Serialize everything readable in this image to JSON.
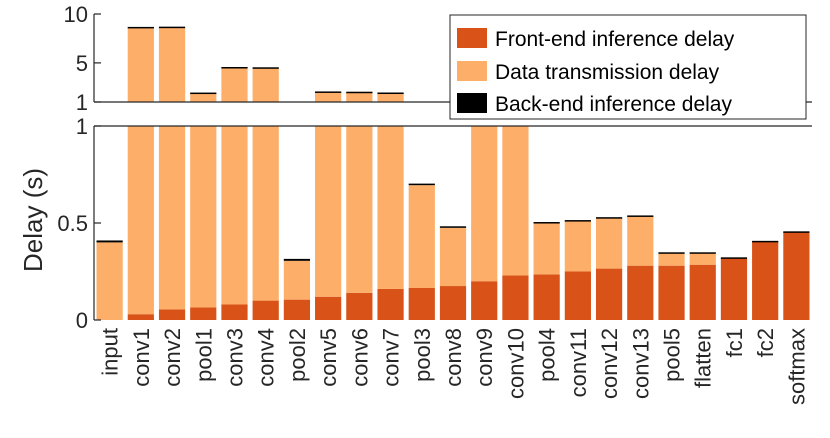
{
  "chart_data": {
    "type": "bar",
    "stacked": true,
    "broken_y_axis": true,
    "ylabel": "Delay (s)",
    "ylim_lower": [
      0,
      1
    ],
    "ylim_upper": [
      1,
      10
    ],
    "yticks_lower": [
      "0",
      "0.5",
      "1"
    ],
    "yticks_upper": [
      "1",
      "5",
      "10"
    ],
    "legend_position": "top-right",
    "categories": [
      "input",
      "conv1",
      "conv2",
      "pool1",
      "conv3",
      "conv4",
      "pool2",
      "conv5",
      "conv6",
      "conv7",
      "pool3",
      "conv8",
      "conv9",
      "conv10",
      "pool4",
      "conv11",
      "conv12",
      "conv13",
      "pool5",
      "flatten",
      "fc1",
      "fc2",
      "softmax"
    ],
    "series": [
      {
        "name": "Front-end inference delay",
        "color": "#d95319",
        "values": [
          0,
          0.03,
          0.055,
          0.065,
          0.08,
          0.1,
          0.105,
          0.12,
          0.14,
          0.16,
          0.165,
          0.175,
          0.2,
          0.23,
          0.235,
          0.25,
          0.265,
          0.28,
          0.28,
          0.285,
          0.32,
          0.405,
          0.455
        ]
      },
      {
        "name": "Data transmission delay",
        "color": "#fdaf6a",
        "values": [
          0.4,
          8.6,
          8.6,
          1.85,
          4.45,
          4.4,
          0.2,
          1.95,
          1.9,
          1.8,
          0.53,
          0.3,
          0.9,
          0.8,
          0.265,
          0.26,
          0.26,
          0.255,
          0.065,
          0.06,
          0.0,
          0.0,
          0.0
        ]
      },
      {
        "name": "Back-end inference delay",
        "color": "#000000",
        "values": [
          0.01,
          0.05,
          0.05,
          0.05,
          0.05,
          0.05,
          0.01,
          0.01,
          0.01,
          0.01,
          0.008,
          0.008,
          0.005,
          0.005,
          0.005,
          0.005,
          0.005,
          0.004,
          0.004,
          0.004,
          0.003,
          0.003,
          0.002
        ]
      }
    ]
  }
}
